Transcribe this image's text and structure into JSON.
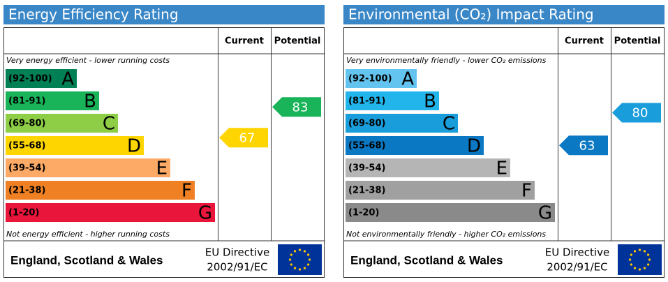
{
  "chart_data": [
    {
      "type": "epc",
      "title": "Energy Efficiency Rating",
      "header_current": "Current",
      "header_potential": "Potential",
      "top_note": "Very energy efficient - lower running costs",
      "bottom_note": "Not energy efficient - higher running costs",
      "bands": [
        {
          "range": "(92-100)",
          "letter": "A",
          "color": "#008054"
        },
        {
          "range": "(81-91)",
          "letter": "B",
          "color": "#19b459"
        },
        {
          "range": "(69-80)",
          "letter": "C",
          "color": "#8dce46"
        },
        {
          "range": "(55-68)",
          "letter": "D",
          "color": "#ffd500"
        },
        {
          "range": "(39-54)",
          "letter": "E",
          "color": "#fcaa65"
        },
        {
          "range": "(21-38)",
          "letter": "F",
          "color": "#ef8023"
        },
        {
          "range": "(1-20)",
          "letter": "G",
          "color": "#e9153b"
        }
      ],
      "current": 67,
      "potential": 83,
      "region": "England, Scotland & Wales",
      "directive": [
        "EU Directive",
        "2002/91/EC"
      ]
    },
    {
      "type": "epc",
      "title": "Environmental (CO₂) Impact Rating",
      "header_current": "Current",
      "header_potential": "Potential",
      "top_note": "Very environmentally friendly - lower CO₂ emissions",
      "bottom_note": "Not environmentally friendly - higher CO₂ emissions",
      "bands": [
        {
          "range": "(92-100)",
          "letter": "A",
          "color": "#63c5ef"
        },
        {
          "range": "(81-91)",
          "letter": "B",
          "color": "#22b5eb"
        },
        {
          "range": "(69-80)",
          "letter": "C",
          "color": "#1a9edb"
        },
        {
          "range": "(55-68)",
          "letter": "D",
          "color": "#0b78c3"
        },
        {
          "range": "(39-54)",
          "letter": "E",
          "color": "#b5b5b5"
        },
        {
          "range": "(21-38)",
          "letter": "F",
          "color": "#a0a0a0"
        },
        {
          "range": "(1-20)",
          "letter": "G",
          "color": "#8a8a8a"
        }
      ],
      "current": 63,
      "potential": 80,
      "region": "England, Scotland & Wales",
      "directive": [
        "EU Directive",
        "2002/91/EC"
      ]
    }
  ]
}
